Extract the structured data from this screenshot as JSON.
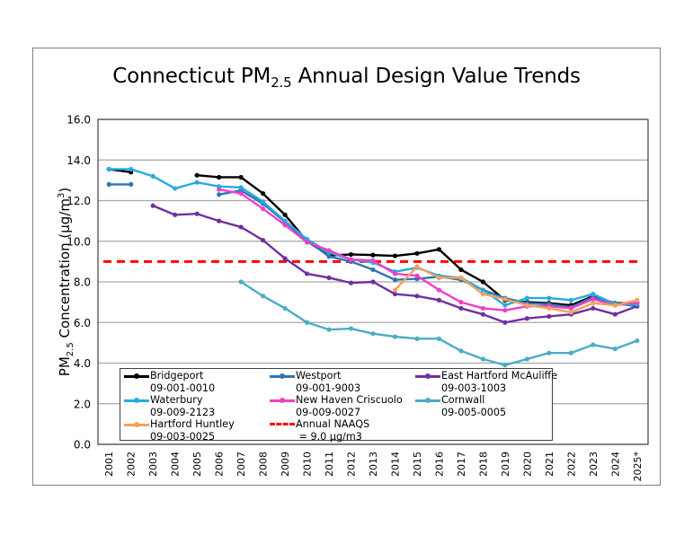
{
  "chart_data": {
    "type": "line",
    "title_main": "Connecticut PM",
    "title_sub": "2.5",
    "title_rest": " Annual Design Value Trends",
    "title": "Connecticut PM2.5 Annual Design Value Trends",
    "xlabel": "",
    "ylabel_main": "PM",
    "ylabel_sub": "2.5",
    "ylabel_rest": " Concentration (µg/m",
    "ylabel_sup": "3",
    "ylabel_end": ")",
    "ylabel": "PM2.5 Concentration (µg/m3)",
    "ylim": [
      0,
      16
    ],
    "yticks": [
      0,
      2,
      4,
      6,
      8,
      10,
      12,
      14,
      16
    ],
    "ytick_labels": [
      "0.0",
      "2.0",
      "4.0",
      "6.0",
      "8.0",
      "10.0",
      "12.0",
      "14.0",
      "16.0"
    ],
    "grid": true,
    "categories": [
      "2001",
      "2002",
      "2003",
      "2004",
      "2005",
      "2006",
      "2007",
      "2008",
      "2009",
      "2010",
      "2011",
      "2012",
      "2013",
      "2014",
      "2015",
      "2016",
      "2017",
      "2018",
      "2019",
      "2020",
      "2021",
      "2022",
      "2023",
      "2024",
      "2025*"
    ],
    "series": [
      {
        "name": "Bridgeport",
        "site": "09-001-0010",
        "color": "#000000",
        "values": [
          13.55,
          13.4,
          null,
          null,
          13.25,
          13.15,
          13.15,
          12.35,
          11.3,
          10.0,
          9.3,
          9.35,
          9.32,
          9.28,
          9.4,
          9.6,
          8.6,
          8.0,
          7.1,
          7.0,
          6.95,
          6.85,
          7.3,
          6.95,
          6.95
        ]
      },
      {
        "name": "Westport",
        "site": "09-001-9003",
        "color": "#2e75b6",
        "values": [
          12.8,
          12.8,
          null,
          null,
          null,
          12.3,
          12.5,
          11.85,
          10.95,
          10.05,
          9.25,
          9.0,
          8.6,
          8.1,
          8.15,
          8.25,
          8.1,
          7.6,
          7.2,
          6.95,
          6.9,
          6.75,
          7.25,
          6.95,
          6.8
        ]
      },
      {
        "name": "East Hartford McAuliffe",
        "site": "09-003-1003",
        "color": "#7030a0",
        "values": [
          null,
          null,
          11.75,
          11.3,
          11.35,
          11.0,
          10.7,
          10.05,
          9.15,
          8.4,
          8.2,
          7.95,
          8.0,
          7.4,
          7.3,
          7.1,
          6.7,
          6.4,
          6.0,
          6.2,
          6.3,
          6.4,
          6.7,
          6.4,
          6.8
        ]
      },
      {
        "name": "Waterbury",
        "site": "09-009-2123",
        "color": "#29aae1",
        "values": [
          13.55,
          13.55,
          13.2,
          12.6,
          12.9,
          12.7,
          12.65,
          11.95,
          11.0,
          10.1,
          9.45,
          9.1,
          8.95,
          8.5,
          8.7,
          8.3,
          8.2,
          7.6,
          6.85,
          7.2,
          7.2,
          7.1,
          7.4,
          6.9,
          6.9
        ]
      },
      {
        "name": "New Haven Criscuolo",
        "site": "09-009-0027",
        "color": "#f03fc6",
        "values": [
          null,
          null,
          null,
          null,
          null,
          12.55,
          12.35,
          11.6,
          10.8,
          9.95,
          9.55,
          9.1,
          9.05,
          8.4,
          8.3,
          7.6,
          7.0,
          6.7,
          6.6,
          6.8,
          6.8,
          6.7,
          7.15,
          6.85,
          7.0
        ]
      },
      {
        "name": "Cornwall",
        "site": "09-005-0005",
        "color": "#4bacc6",
        "values": [
          null,
          null,
          null,
          null,
          null,
          null,
          8.0,
          7.3,
          6.7,
          6.0,
          5.65,
          5.7,
          5.45,
          5.3,
          5.2,
          5.2,
          4.6,
          4.2,
          3.9,
          4.2,
          4.5,
          4.5,
          4.9,
          4.7,
          5.1
        ]
      },
      {
        "name": "Hartford Huntley",
        "site": "09-003-0025",
        "color": "#f4a05a",
        "values": [
          null,
          null,
          null,
          null,
          null,
          null,
          null,
          null,
          null,
          null,
          null,
          null,
          null,
          7.6,
          8.75,
          8.2,
          8.2,
          7.4,
          7.15,
          6.85,
          6.7,
          6.5,
          6.95,
          6.85,
          7.1
        ]
      }
    ],
    "reference_line": {
      "name": "Annual NAAQS",
      "label_line2": "= 9.0 µg/m3",
      "value": 9.0,
      "color": "#ff0000",
      "style": "dashed"
    },
    "legend_position": "bottom-inside",
    "legend": [
      {
        "label": "Bridgeport",
        "sub": "09-001-0010",
        "color": "#000000",
        "kind": "line"
      },
      {
        "label": "Westport",
        "sub": "09-001-9003",
        "color": "#2e75b6",
        "kind": "line"
      },
      {
        "label": "East Hartford McAuliffe",
        "sub": "09-003-1003",
        "color": "#7030a0",
        "kind": "line"
      },
      {
        "label": "Waterbury",
        "sub": "09-009-2123",
        "color": "#29aae1",
        "kind": "line"
      },
      {
        "label": "New Haven Criscuolo",
        "sub": "09-009-0027",
        "color": "#f03fc6",
        "kind": "line"
      },
      {
        "label": "Cornwall",
        "sub": "09-005-0005",
        "color": "#4bacc6",
        "kind": "line"
      },
      {
        "label": "Hartford Huntley",
        "sub": "09-003-0025",
        "color": "#f4a05a",
        "kind": "line"
      },
      {
        "label": "Annual NAAQS",
        "sub": " = 9.0 µg/m3",
        "color": "#ff0000",
        "kind": "dashed"
      }
    ]
  }
}
